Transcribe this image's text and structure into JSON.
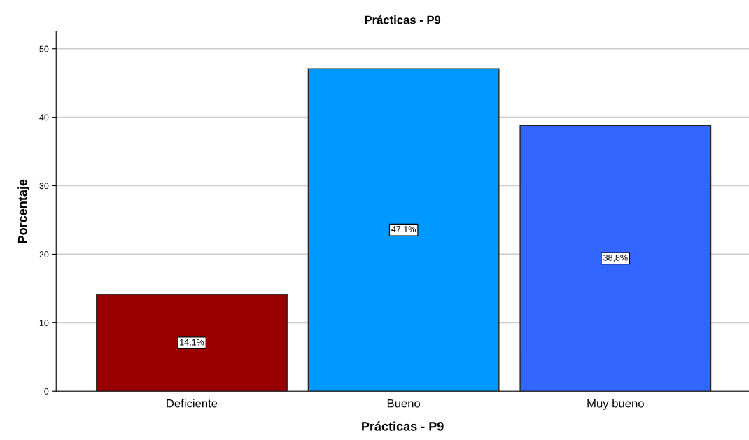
{
  "chart_data": {
    "type": "bar",
    "title": "Prácticas - P9",
    "xlabel": "Prácticas - P9",
    "ylabel": "Porcentaje",
    "categories": [
      "Deficiente",
      "Bueno",
      "Muy bueno"
    ],
    "values": [
      14.1,
      47.1,
      38.8
    ],
    "colors": [
      "#990000",
      "#0099ff",
      "#3366ff"
    ],
    "value_labels": [
      "14,1%",
      "47,1%",
      "38,8%"
    ],
    "ylim": [
      0,
      52.5
    ],
    "yticks": [
      0,
      10,
      20,
      30,
      40,
      50
    ],
    "grid": "y",
    "legend": false
  }
}
